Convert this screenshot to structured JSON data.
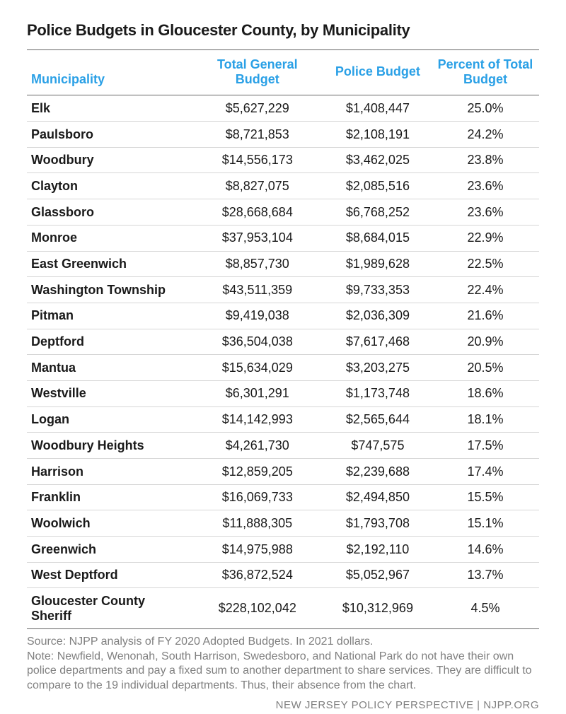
{
  "title": "Police Budgets in Gloucester County, by Municipality",
  "columns": [
    "Municipality",
    "Total General Budget",
    "Police Budget",
    "Percent of Total Budget"
  ],
  "col_widths": [
    "32%",
    "26%",
    "21%",
    "21%"
  ],
  "header_color": "#2aa0e6",
  "text_color": "#1a1a1a",
  "border_color_strong": "#666666",
  "border_color_light": "#d6d6d6",
  "background_color": "#ffffff",
  "title_fontsize": 22,
  "header_fontsize": 18,
  "cell_fontsize": 18,
  "rows": [
    {
      "m": "Elk",
      "tgb": "$5,627,229",
      "pb": "$1,408,447",
      "pct": "25.0%"
    },
    {
      "m": "Paulsboro",
      "tgb": "$8,721,853",
      "pb": "$2,108,191",
      "pct": "24.2%"
    },
    {
      "m": "Woodbury",
      "tgb": "$14,556,173",
      "pb": "$3,462,025",
      "pct": "23.8%"
    },
    {
      "m": "Clayton",
      "tgb": "$8,827,075",
      "pb": "$2,085,516",
      "pct": "23.6%"
    },
    {
      "m": "Glassboro",
      "tgb": "$28,668,684",
      "pb": "$6,768,252",
      "pct": "23.6%"
    },
    {
      "m": "Monroe",
      "tgb": "$37,953,104",
      "pb": "$8,684,015",
      "pct": "22.9%"
    },
    {
      "m": "East Greenwich",
      "tgb": "$8,857,730",
      "pb": "$1,989,628",
      "pct": "22.5%"
    },
    {
      "m": "Washington Township",
      "tgb": "$43,511,359",
      "pb": "$9,733,353",
      "pct": "22.4%"
    },
    {
      "m": "Pitman",
      "tgb": "$9,419,038",
      "pb": "$2,036,309",
      "pct": "21.6%"
    },
    {
      "m": "Deptford",
      "tgb": "$36,504,038",
      "pb": "$7,617,468",
      "pct": "20.9%"
    },
    {
      "m": "Mantua",
      "tgb": "$15,634,029",
      "pb": "$3,203,275",
      "pct": "20.5%"
    },
    {
      "m": "Westville",
      "tgb": "$6,301,291",
      "pb": "$1,173,748",
      "pct": "18.6%"
    },
    {
      "m": "Logan",
      "tgb": "$14,142,993",
      "pb": "$2,565,644",
      "pct": "18.1%"
    },
    {
      "m": "Woodbury Heights",
      "tgb": "$4,261,730",
      "pb": "$747,575",
      "pct": "17.5%"
    },
    {
      "m": "Harrison",
      "tgb": "$12,859,205",
      "pb": "$2,239,688",
      "pct": "17.4%"
    },
    {
      "m": "Franklin",
      "tgb": "$16,069,733",
      "pb": "$2,494,850",
      "pct": "15.5%"
    },
    {
      "m": "Woolwich",
      "tgb": "$11,888,305",
      "pb": "$1,793,708",
      "pct": "15.1%"
    },
    {
      "m": "Greenwich",
      "tgb": "$14,975,988",
      "pb": "$2,192,110",
      "pct": "14.6%"
    },
    {
      "m": "West Deptford",
      "tgb": "$36,872,524",
      "pb": "$5,052,967",
      "pct": "13.7%"
    },
    {
      "m": "Gloucester County Sheriff",
      "tgb": "$228,102,042",
      "pb": "$10,312,969",
      "pct": "4.5%"
    }
  ],
  "source_line1": "Source: NJPP analysis of FY 2020 Adopted Budgets. In 2021 dollars.",
  "source_line2": "Note: Newfield, Wenonah, South Harrison, Swedesboro, and National Park do not have their own police departments and pay a fixed sum to another department to share services. They are difficult to compare to the 19 individual departments. Thus, their absence from the chart.",
  "attribution": "NEW JERSEY POLICY PERSPECTIVE | NJPP.ORG"
}
